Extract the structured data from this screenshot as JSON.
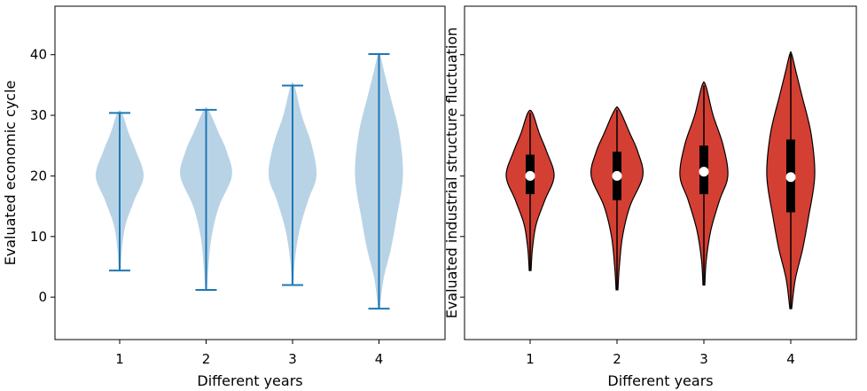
{
  "chart_data": [
    {
      "type": "violin",
      "style": "plain",
      "title": "",
      "xlabel": "Different years",
      "ylabel": "Evaluated economic cycle",
      "categories": [
        "1",
        "2",
        "3",
        "4"
      ],
      "ylim": [
        -7,
        48
      ],
      "yticks": [
        0,
        10,
        20,
        30,
        40
      ],
      "grid": false,
      "colors": {
        "body": "#b9d3e6",
        "lines": "#1f77b4"
      },
      "series": [
        {
          "category": "1",
          "min": 4.4,
          "max": 30.4,
          "density": [
            [
              4.4,
              0.02
            ],
            [
              8,
              0.05
            ],
            [
              12,
              0.13
            ],
            [
              16,
              0.32
            ],
            [
              20,
              0.52
            ],
            [
              24,
              0.36
            ],
            [
              27,
              0.2
            ],
            [
              30.4,
              0.05
            ]
          ]
        },
        {
          "category": "2",
          "min": 1.2,
          "max": 30.9,
          "density": [
            [
              1.2,
              0.02
            ],
            [
              5,
              0.05
            ],
            [
              10,
              0.12
            ],
            [
              15,
              0.28
            ],
            [
              20,
              0.56
            ],
            [
              24,
              0.45
            ],
            [
              27,
              0.28
            ],
            [
              30.9,
              0.05
            ]
          ]
        },
        {
          "category": "3",
          "min": 2.0,
          "max": 34.9,
          "density": [
            [
              2,
              0.02
            ],
            [
              6,
              0.05
            ],
            [
              11,
              0.15
            ],
            [
              16,
              0.34
            ],
            [
              20,
              0.52
            ],
            [
              25,
              0.42
            ],
            [
              30,
              0.2
            ],
            [
              34.9,
              0.04
            ]
          ]
        },
        {
          "category": "4",
          "min": -1.9,
          "max": 40.1,
          "density": [
            [
              -1.9,
              0.02
            ],
            [
              3,
              0.1
            ],
            [
              8,
              0.26
            ],
            [
              13,
              0.38
            ],
            [
              20,
              0.52
            ],
            [
              27,
              0.44
            ],
            [
              33,
              0.25
            ],
            [
              37,
              0.12
            ],
            [
              40.1,
              0.02
            ]
          ]
        }
      ]
    },
    {
      "type": "violin",
      "style": "box",
      "title": "",
      "xlabel": "Different years",
      "ylabel": "Evaluated industrial structure fluctuation",
      "categories": [
        "1",
        "2",
        "3",
        "4"
      ],
      "ylim": [
        -7,
        48
      ],
      "grid": false,
      "colors": {
        "body": "#d43f33",
        "edge": "#000000",
        "box": "#000000",
        "median": "#ffffff"
      },
      "series": [
        {
          "category": "1",
          "min": 4.4,
          "max": 30.4,
          "q1": 17.0,
          "median": 20.0,
          "q3": 23.5,
          "density": [
            [
              4.4,
              0.02
            ],
            [
              8,
              0.05
            ],
            [
              12,
              0.13
            ],
            [
              16,
              0.32
            ],
            [
              20,
              0.52
            ],
            [
              24,
              0.36
            ],
            [
              27,
              0.2
            ],
            [
              30.4,
              0.05
            ]
          ]
        },
        {
          "category": "2",
          "min": 1.2,
          "max": 30.9,
          "q1": 16.0,
          "median": 20.0,
          "q3": 24.0,
          "density": [
            [
              1.2,
              0.02
            ],
            [
              5,
              0.05
            ],
            [
              10,
              0.12
            ],
            [
              15,
              0.28
            ],
            [
              20,
              0.56
            ],
            [
              24,
              0.45
            ],
            [
              27,
              0.28
            ],
            [
              30.9,
              0.05
            ]
          ]
        },
        {
          "category": "3",
          "min": 2.0,
          "max": 34.9,
          "q1": 17.0,
          "median": 20.7,
          "q3": 25.0,
          "density": [
            [
              2,
              0.02
            ],
            [
              6,
              0.05
            ],
            [
              11,
              0.15
            ],
            [
              16,
              0.34
            ],
            [
              20,
              0.52
            ],
            [
              25,
              0.42
            ],
            [
              30,
              0.2
            ],
            [
              34.9,
              0.04
            ]
          ]
        },
        {
          "category": "4",
          "min": -1.9,
          "max": 40.1,
          "q1": 14.0,
          "median": 19.8,
          "q3": 26.0,
          "density": [
            [
              -1.9,
              0.02
            ],
            [
              3,
              0.1
            ],
            [
              8,
              0.26
            ],
            [
              13,
              0.38
            ],
            [
              20,
              0.52
            ],
            [
              27,
              0.44
            ],
            [
              33,
              0.25
            ],
            [
              37,
              0.12
            ],
            [
              40.1,
              0.02
            ]
          ]
        }
      ]
    }
  ]
}
